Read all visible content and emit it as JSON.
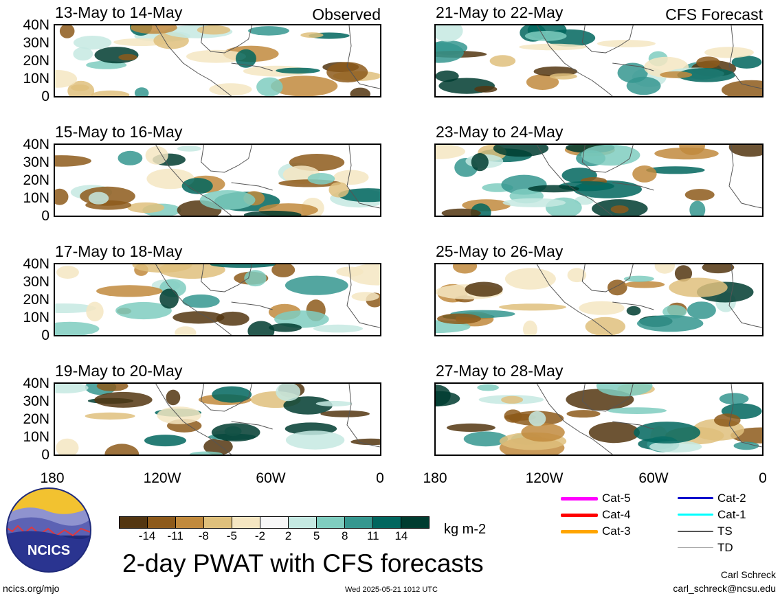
{
  "panels": [
    {
      "title": "13-May to 14-May",
      "tag": "Observed"
    },
    {
      "title": "15-May to 16-May",
      "tag": ""
    },
    {
      "title": "17-May to 18-May",
      "tag": ""
    },
    {
      "title": "19-May to 20-May",
      "tag": ""
    },
    {
      "title": "21-May to 22-May",
      "tag": "CFS Forecast"
    },
    {
      "title": "23-May to 24-May",
      "tag": ""
    },
    {
      "title": "25-May to 26-May",
      "tag": ""
    },
    {
      "title": "27-May to 28-May",
      "tag": ""
    }
  ],
  "lat_ticks": [
    "40N",
    "30N",
    "20N",
    "10N",
    "0"
  ],
  "lon_ticks": [
    "180",
    "120W",
    "60W",
    "0"
  ],
  "colorbar": {
    "labels": [
      "-14",
      "-11",
      "-8",
      "-5",
      "-2",
      "2",
      "5",
      "8",
      "11",
      "14"
    ],
    "colors": [
      "#533611",
      "#8d5a1b",
      "#c18a3d",
      "#dfc07c",
      "#f5e6c2",
      "#f7f7f7",
      "#c5e9e2",
      "#7fcdbf",
      "#35978f",
      "#01665e",
      "#003c30"
    ],
    "unit": "kg m-2"
  },
  "title": "2-day PWAT with CFS forecasts",
  "logo_text": "NCICS",
  "legend": [
    {
      "label": "Cat-5",
      "color": "#ff00ff"
    },
    {
      "label": "Cat-4",
      "color": "#ff0000"
    },
    {
      "label": "Cat-3",
      "color": "#ffa500"
    },
    {
      "label": "Cat-2",
      "color": "#0000cc"
    },
    {
      "label": "Cat-1",
      "color": "#00ffff"
    },
    {
      "label": "TS",
      "color": "#555555"
    },
    {
      "label": "TD",
      "color": "#aaaaaa"
    }
  ],
  "footer": {
    "url": "ncics.org/mjo",
    "timestamp": "Wed 2025-05-21 1012 UTC",
    "author": "Carl Schreck",
    "email": "carl_schreck@ncsu.edu"
  }
}
